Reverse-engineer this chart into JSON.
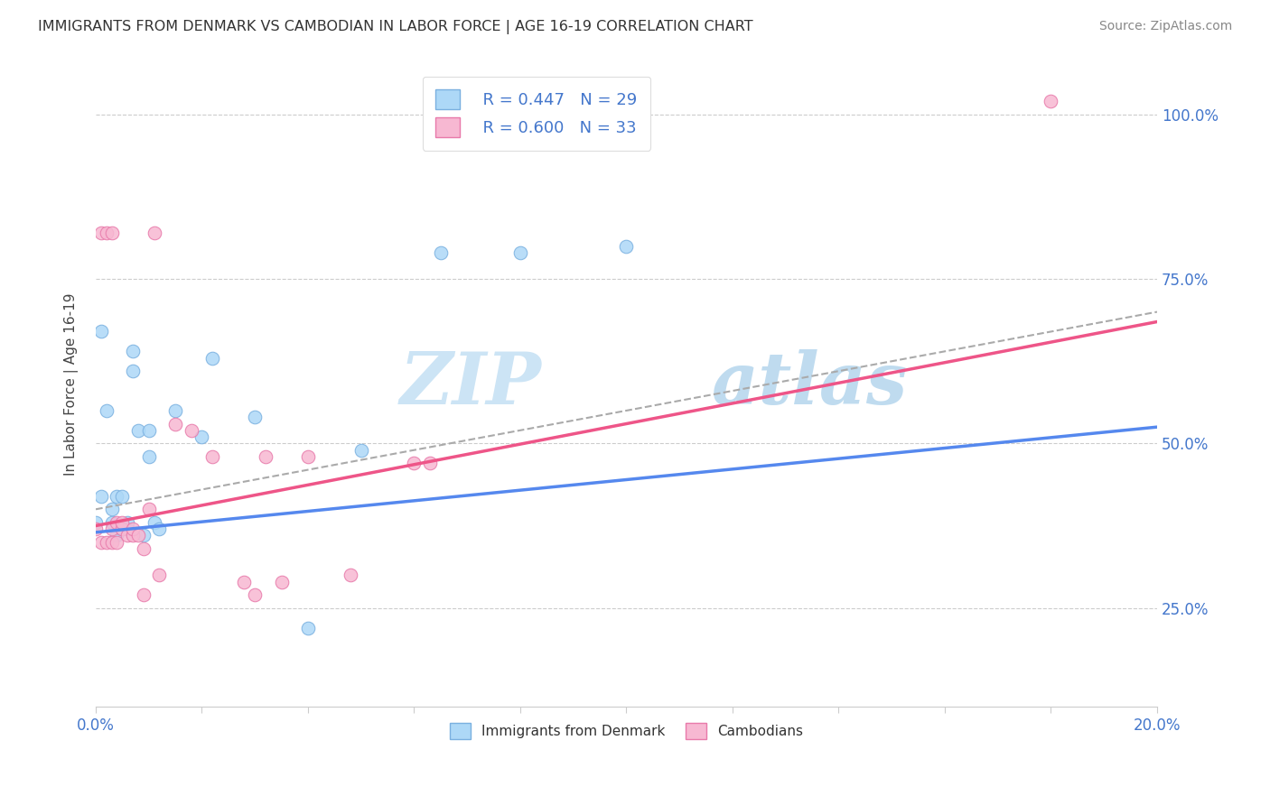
{
  "title": "IMMIGRANTS FROM DENMARK VS CAMBODIAN IN LABOR FORCE | AGE 16-19 CORRELATION CHART",
  "source": "Source: ZipAtlas.com",
  "ylabel": "In Labor Force | Age 16-19",
  "xlim": [
    0.0,
    0.2
  ],
  "ylim": [
    0.1,
    1.08
  ],
  "xticks": [
    0.0,
    0.02,
    0.04,
    0.06,
    0.08,
    0.1,
    0.12,
    0.14,
    0.16,
    0.18,
    0.2
  ],
  "yticks": [
    0.25,
    0.5,
    0.75,
    1.0
  ],
  "ytick_labels": [
    "25.0%",
    "50.0%",
    "75.0%",
    "100.0%"
  ],
  "legend_R_denmark": "R = 0.447",
  "legend_N_denmark": "N = 29",
  "legend_R_cambodian": "R = 0.600",
  "legend_N_cambodian": "N = 33",
  "color_denmark_fill": "#add8f7",
  "color_cambodian_fill": "#f7b8d2",
  "color_denmark_edge": "#7ab0e0",
  "color_cambodian_edge": "#e87aaa",
  "color_denmark_line": "#5588ee",
  "color_cambodian_line": "#ee5588",
  "color_gray_dash": "#aaaaaa",
  "color_axis_text": "#4477cc",
  "color_title": "#333333",
  "color_grid": "#cccccc",
  "background_color": "#ffffff",
  "denmark_x": [
    0.0,
    0.001,
    0.001,
    0.002,
    0.003,
    0.003,
    0.004,
    0.004,
    0.005,
    0.005,
    0.006,
    0.006,
    0.007,
    0.007,
    0.008,
    0.009,
    0.01,
    0.01,
    0.011,
    0.012,
    0.015,
    0.02,
    0.022,
    0.03,
    0.04,
    0.05,
    0.065,
    0.08,
    0.1
  ],
  "denmark_y": [
    0.38,
    0.42,
    0.67,
    0.55,
    0.38,
    0.4,
    0.36,
    0.42,
    0.37,
    0.42,
    0.37,
    0.38,
    0.64,
    0.61,
    0.52,
    0.36,
    0.52,
    0.48,
    0.38,
    0.37,
    0.55,
    0.51,
    0.63,
    0.54,
    0.22,
    0.49,
    0.79,
    0.79,
    0.8
  ],
  "cambodian_x": [
    0.0,
    0.001,
    0.001,
    0.002,
    0.002,
    0.003,
    0.003,
    0.003,
    0.004,
    0.004,
    0.005,
    0.005,
    0.006,
    0.007,
    0.007,
    0.008,
    0.009,
    0.009,
    0.01,
    0.011,
    0.012,
    0.015,
    0.018,
    0.022,
    0.028,
    0.03,
    0.032,
    0.035,
    0.04,
    0.048,
    0.06,
    0.063,
    0.18
  ],
  "cambodian_y": [
    0.37,
    0.35,
    0.82,
    0.35,
    0.82,
    0.35,
    0.82,
    0.37,
    0.38,
    0.35,
    0.37,
    0.38,
    0.36,
    0.36,
    0.37,
    0.36,
    0.34,
    0.27,
    0.4,
    0.82,
    0.3,
    0.53,
    0.52,
    0.48,
    0.29,
    0.27,
    0.48,
    0.29,
    0.48,
    0.3,
    0.47,
    0.47,
    1.02
  ],
  "watermark_zip": "ZIP",
  "watermark_atlas": "atlas",
  "line_dk_x0": 0.0,
  "line_dk_y0": 0.365,
  "line_dk_x1": 0.2,
  "line_dk_y1": 0.525,
  "line_cam_x0": 0.0,
  "line_cam_y0": 0.375,
  "line_cam_x1": 0.2,
  "line_cam_y1": 0.685,
  "line_dash_x0": 0.0,
  "line_dash_y0": 0.4,
  "line_dash_x1": 0.2,
  "line_dash_y1": 0.7
}
